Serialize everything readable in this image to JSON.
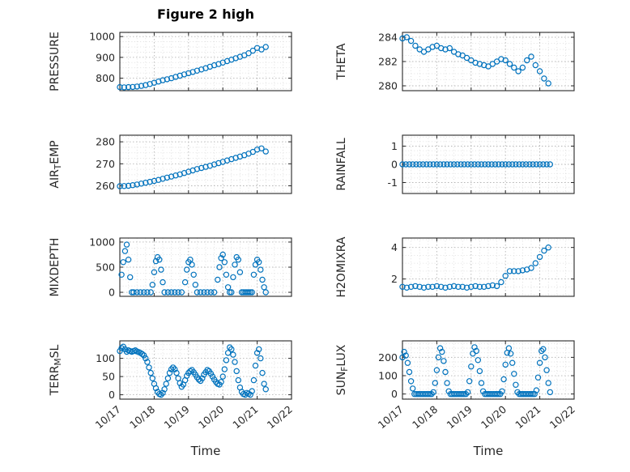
{
  "figure": {
    "title": "Figure 2 high"
  },
  "axes_shared": {
    "xlabel": "Time",
    "xlim": [
      0,
      5
    ],
    "xticks": [
      0,
      1,
      2,
      3,
      4,
      5
    ],
    "xticklabels": [
      "10/17",
      "10/18",
      "10/19",
      "10/20",
      "10/21",
      "10/22"
    ],
    "xminor": 0.25,
    "grid": true,
    "minor_grid": true,
    "marker": "open-circle",
    "marker_color": "#0072BD"
  },
  "chart_data": [
    {
      "type": "scatter",
      "id": "pressure",
      "label": "PRESSURE",
      "label_parts": [
        {
          "text": "PRESSURE",
          "sub": false
        }
      ],
      "ylim": [
        740,
        1020
      ],
      "yticks": [
        800,
        900,
        1000
      ],
      "yminor": 25,
      "x0": 0,
      "dx": 0.125,
      "y": [
        757,
        756,
        757,
        758,
        760,
        763,
        767,
        772,
        778,
        784,
        790,
        795,
        800,
        806,
        812,
        818,
        824,
        830,
        836,
        842,
        848,
        855,
        862,
        868,
        875,
        882,
        889,
        896,
        903,
        910,
        920,
        932,
        945,
        938,
        950
      ]
    },
    {
      "type": "scatter",
      "id": "airtemp",
      "label": "AIR_TEMP",
      "label_parts": [
        {
          "text": "AIR",
          "sub": false
        },
        {
          "text": "T",
          "sub": true
        },
        {
          "text": "EMP",
          "sub": false
        }
      ],
      "ylim": [
        256.5,
        283
      ],
      "yticks": [
        260,
        270,
        280
      ],
      "yminor": 2.5,
      "x0": 0,
      "dx": 0.125,
      "y": [
        259.8,
        259.9,
        260.0,
        260.3,
        260.6,
        261.0,
        261.4,
        261.8,
        262.2,
        262.7,
        263.2,
        263.7,
        264.2,
        264.7,
        265.2,
        265.8,
        266.4,
        267.0,
        267.6,
        268.1,
        268.6,
        269.1,
        269.7,
        270.3,
        270.9,
        271.5,
        272.1,
        272.7,
        273.3,
        273.9,
        274.6,
        275.4,
        276.5,
        277.0,
        275.6
      ]
    },
    {
      "type": "scatter",
      "id": "mixdepth",
      "label": "MIXDEPTH",
      "label_parts": [
        {
          "text": "MIXDEPTH",
          "sub": false
        }
      ],
      "ylim": [
        -80,
        1080
      ],
      "yticks": [
        0,
        500,
        1000
      ],
      "yminor": 125,
      "x": [
        0.05,
        0.1,
        0.15,
        0.2,
        0.25,
        0.3,
        0.35,
        0.4,
        0.5,
        0.6,
        0.7,
        0.8,
        0.9,
        0.95,
        1.0,
        1.05,
        1.1,
        1.15,
        1.2,
        1.25,
        1.3,
        1.4,
        1.5,
        1.6,
        1.7,
        1.8,
        1.9,
        1.95,
        2.0,
        2.05,
        2.1,
        2.15,
        2.2,
        2.25,
        2.35,
        2.45,
        2.55,
        2.65,
        2.75,
        2.85,
        2.9,
        2.95,
        3.0,
        3.05,
        3.1,
        3.15,
        3.2,
        3.25,
        3.3,
        3.35,
        3.4,
        3.45,
        3.5,
        3.55,
        3.6,
        3.65,
        3.7,
        3.75,
        3.8,
        3.85,
        3.9,
        3.95,
        4.0,
        4.05,
        4.1,
        4.15,
        4.2,
        4.25
      ],
      "y": [
        350,
        600,
        820,
        950,
        650,
        300,
        0,
        0,
        0,
        0,
        0,
        0,
        0,
        150,
        400,
        620,
        700,
        650,
        450,
        200,
        0,
        0,
        0,
        0,
        0,
        0,
        200,
        450,
        600,
        650,
        550,
        350,
        150,
        0,
        0,
        0,
        0,
        0,
        0,
        250,
        500,
        680,
        750,
        600,
        350,
        100,
        0,
        0,
        300,
        550,
        700,
        650,
        400,
        0,
        0,
        0,
        0,
        0,
        0,
        0,
        350,
        550,
        650,
        600,
        450,
        250,
        100,
        0
      ]
    },
    {
      "type": "scatter",
      "id": "terr_msl",
      "label": "TERR_MSL",
      "label_parts": [
        {
          "text": "TERR",
          "sub": false
        },
        {
          "text": "M",
          "sub": true
        },
        {
          "text": "SL",
          "sub": false
        }
      ],
      "ylim": [
        -12,
        148
      ],
      "yticks": [
        0,
        50,
        100
      ],
      "yminor": 12.5,
      "x0": 0,
      "dx": 0.05,
      "y": [
        120,
        128,
        132,
        125,
        118,
        122,
        120,
        118,
        120,
        122,
        119,
        117,
        115,
        112,
        108,
        100,
        90,
        75,
        60,
        45,
        30,
        18,
        8,
        2,
        0,
        5,
        15,
        30,
        45,
        60,
        70,
        75,
        70,
        60,
        45,
        32,
        22,
        28,
        40,
        52,
        60,
        65,
        68,
        62,
        55,
        48,
        42,
        38,
        45,
        55,
        62,
        68,
        65,
        58,
        50,
        42,
        35,
        30,
        28,
        35,
        50,
        70,
        95,
        115,
        130,
        125,
        110,
        90,
        65,
        40,
        20,
        8,
        2,
        0,
        5,
        3,
        0,
        10,
        40,
        80,
        115,
        125,
        100,
        60,
        30,
        15
      ]
    },
    {
      "type": "scatter",
      "id": "theta",
      "label": "THETA",
      "label_parts": [
        {
          "text": "THETA",
          "sub": false
        }
      ],
      "ylim": [
        279.6,
        284.4
      ],
      "yticks": [
        280,
        282,
        284
      ],
      "yminor": 0.5,
      "x0": 0,
      "dx": 0.125,
      "y": [
        283.9,
        284.0,
        283.7,
        283.3,
        283.0,
        282.8,
        283.0,
        283.2,
        283.3,
        283.1,
        283.0,
        283.1,
        282.8,
        282.6,
        282.5,
        282.3,
        282.1,
        281.9,
        281.8,
        281.7,
        281.6,
        281.8,
        282.0,
        282.2,
        282.1,
        281.8,
        281.5,
        281.2,
        281.5,
        282.1,
        282.4,
        281.7,
        281.2,
        280.6,
        280.2
      ]
    },
    {
      "type": "scatter",
      "id": "rainfall",
      "label": "RAINFALL",
      "label_parts": [
        {
          "text": "RAINFALL",
          "sub": false
        }
      ],
      "ylim": [
        -1.6,
        1.6
      ],
      "yticks": [
        -1,
        0,
        1
      ],
      "yminor": 0.25,
      "x0": 0,
      "dx": 0.1,
      "y": [
        0,
        0,
        0,
        0,
        0,
        0,
        0,
        0,
        0,
        0,
        0,
        0,
        0,
        0,
        0,
        0,
        0,
        0,
        0,
        0,
        0,
        0,
        0,
        0,
        0,
        0,
        0,
        0,
        0,
        0,
        0,
        0,
        0,
        0,
        0,
        0,
        0,
        0,
        0,
        0,
        0,
        0,
        0,
        0
      ]
    },
    {
      "type": "scatter",
      "id": "h2omixra",
      "label": "H2OMIXRA",
      "label_parts": [
        {
          "text": "H2OMIXRA",
          "sub": false
        }
      ],
      "ylim": [
        0.9,
        4.6
      ],
      "yticks": [
        2,
        4
      ],
      "yminor": 0.5,
      "x0": 0,
      "dx": 0.125,
      "y": [
        1.5,
        1.45,
        1.5,
        1.55,
        1.5,
        1.45,
        1.5,
        1.5,
        1.55,
        1.5,
        1.45,
        1.5,
        1.55,
        1.5,
        1.5,
        1.45,
        1.5,
        1.55,
        1.5,
        1.5,
        1.55,
        1.6,
        1.55,
        1.8,
        2.2,
        2.5,
        2.5,
        2.5,
        2.55,
        2.6,
        2.7,
        3.0,
        3.4,
        3.8,
        4.0
      ]
    },
    {
      "type": "scatter",
      "id": "sun_flux",
      "label": "SUN_FLUX",
      "label_parts": [
        {
          "text": "SUN",
          "sub": false
        },
        {
          "text": "F",
          "sub": true
        },
        {
          "text": "LUX",
          "sub": false
        }
      ],
      "ylim": [
        -28,
        290
      ],
      "yticks": [
        0,
        100,
        200
      ],
      "yminor": 25,
      "x0": 0,
      "dx": 0.05,
      "y": [
        200,
        230,
        210,
        170,
        120,
        70,
        30,
        0,
        0,
        0,
        0,
        0,
        0,
        0,
        0,
        0,
        0,
        0,
        10,
        60,
        130,
        200,
        250,
        230,
        180,
        120,
        60,
        15,
        0,
        0,
        0,
        0,
        0,
        0,
        0,
        0,
        0,
        0,
        10,
        70,
        150,
        220,
        255,
        235,
        185,
        125,
        60,
        15,
        0,
        0,
        0,
        0,
        0,
        0,
        0,
        0,
        0,
        0,
        15,
        80,
        160,
        225,
        250,
        220,
        170,
        110,
        50,
        10,
        0,
        0,
        0,
        0,
        0,
        0,
        0,
        0,
        0,
        0,
        20,
        90,
        170,
        235,
        245,
        200,
        130,
        60,
        10
      ]
    }
  ]
}
